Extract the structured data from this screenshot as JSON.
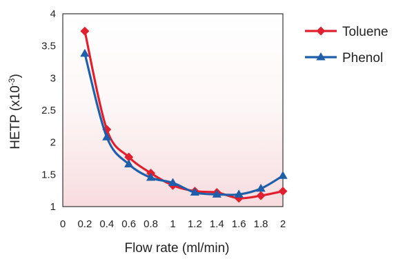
{
  "chart_data": {
    "type": "line",
    "xlabel": "Flow rate (ml/min)",
    "ylabel": "HETP (x10",
    "ylabel_sup": "-3",
    "ylabel_suffix": ")",
    "xlim": [
      0,
      2
    ],
    "ylim": [
      1,
      4
    ],
    "x_ticks": [
      "0",
      "0.2",
      "0.4",
      "0.6",
      "0.8",
      "1",
      "1.2",
      "1.4",
      "1.6",
      "1.8",
      "2"
    ],
    "y_ticks": [
      "1",
      "1.5",
      "2",
      "2.5",
      "3",
      "3.5",
      "4"
    ],
    "grid": false,
    "legend_position": "top-right",
    "series": [
      {
        "name": "Toluene",
        "color": "#e0202e",
        "marker": "diamond",
        "x": [
          0.2,
          0.4,
          0.6,
          0.8,
          1.0,
          1.2,
          1.4,
          1.6,
          1.8,
          2.0
        ],
        "y": [
          3.73,
          2.2,
          1.77,
          1.52,
          1.33,
          1.24,
          1.22,
          1.13,
          1.17,
          1.24
        ]
      },
      {
        "name": "Phenol",
        "color": "#1f5ea8",
        "marker": "triangle",
        "x": [
          0.2,
          0.4,
          0.6,
          0.8,
          1.0,
          1.2,
          1.4,
          1.6,
          1.8,
          2.0
        ],
        "y": [
          3.38,
          2.08,
          1.66,
          1.45,
          1.37,
          1.22,
          1.19,
          1.19,
          1.28,
          1.48
        ]
      }
    ]
  }
}
